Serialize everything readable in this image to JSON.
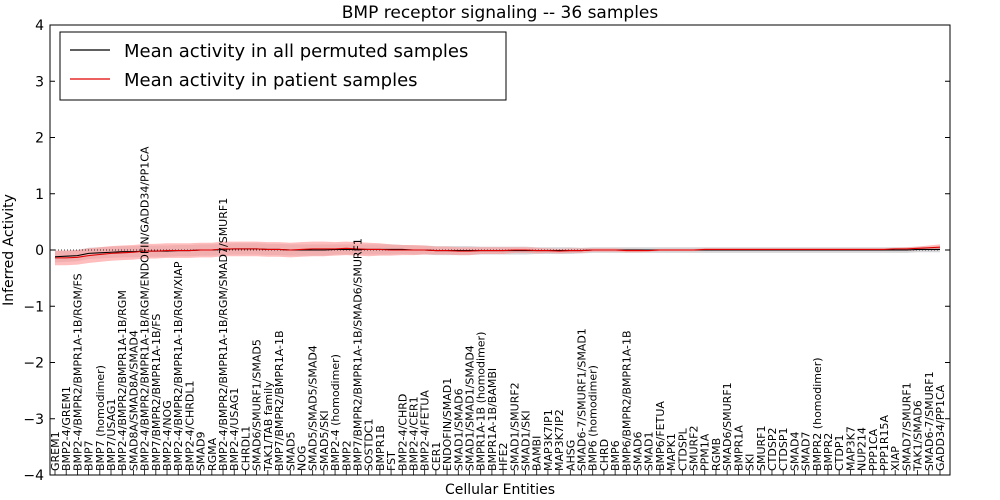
{
  "chart_data": {
    "type": "line",
    "title": "BMP receptor signaling -- 36 samples",
    "xlabel": "Cellular Entities",
    "ylabel": "Inferred Activity",
    "ylim": [
      -4,
      4
    ],
    "yticks": [
      -4,
      -3,
      -2,
      -1,
      0,
      1,
      2,
      3,
      4
    ],
    "legend_position": "top-left",
    "categories": [
      "GREM1",
      "BMP2-4/GREM1",
      "BMP2-4/BMPR2/BMPR1A-1B/RGM/FS",
      "BMP7",
      "BMP7 (homodimer)",
      "BMP7/USAG1",
      "BMP2-4/BMPR2/BMPR1A-1B/RGM",
      "SMAD8A/SMAD8A/SMAD4",
      "BMP2-4/BMPR2/BMPR1A-1B/RGM/ENDOFIN/GADD34/PP1CA",
      "BMP7/BMPR2/BMPR1A-1B/FS",
      "BMP2-4/NOG",
      "BMP2-4/BMPR2/BMPR1A-1B/RGM/XIAP",
      "BMP2-4/CHRDL1",
      "SMAD9",
      "RGMA",
      "BMP2-4/BMPR2/BMPR1A-1B/RGM/SMAD7/SMURF1",
      "BMP2-4/USAG1",
      "CHRDL1",
      "SMAD6/SMURF1/SMAD5",
      "TAK1/TAB family",
      "BMP7/BMPR2/BMPR1A-1B",
      "SMAD5",
      "NOG",
      "SMAD5/SMAD5/SMAD4",
      "SMAD5/SKI",
      "BMP2-4 (homodimer)",
      "BMP2",
      "BMP7/BMPR2/BMPR1A-1B/SMAD6/SMURF1",
      "SOSTDC1",
      "BMPR1B",
      "FST",
      "BMP2-4/CHRD",
      "BMP2-4/CER1",
      "BMP2-4/FETUA",
      "CER1",
      "ENDOFIN/SMAD1",
      "SMAD1/SMAD6",
      "SMAD1/SMAD1/SMAD4",
      "BMPR1A-1B (homodimer)",
      "BMPR1A-1B/BAMBI",
      "HFE2",
      "SMAD1/SMURF2",
      "SMAD1/SKI",
      "BAMBI",
      "MAP3K7IP1",
      "MAP3K7IP2",
      "AHSG",
      "SMAD6-7/SMURF1/SMAD1",
      "BMP6 (homodimer)",
      "CHRD",
      "BMP6",
      "BMP6/BMPR2/BMPR1A-1B",
      "SMAD6",
      "SMAD1",
      "BMP6/FETUA",
      "MAPK1",
      "CTDSPL",
      "SMURF2",
      "PPM1A",
      "RGMB",
      "SMAD6/SMURF1",
      "BMPR1A",
      "SKI",
      "SMURF1",
      "CTDSP2",
      "CTDSP1",
      "SMAD4",
      "SMAD7",
      "BMPR2 (homodimer)",
      "BMPR2",
      "CTDP1",
      "MAP3K7",
      "NUP214",
      "PPP1CA",
      "PPP1R15A",
      "XIAP",
      "SMAD7/SMURF1",
      "TAK1/SMAD6",
      "SMAD6-7/SMURF1",
      "GADD34/PP1CA"
    ],
    "series": [
      {
        "name": "Mean activity in all permuted samples",
        "color": "#000000",
        "band_color": "#c8c8cc",
        "values": [
          -0.12,
          -0.11,
          -0.1,
          -0.06,
          -0.05,
          -0.04,
          -0.03,
          -0.03,
          -0.02,
          -0.02,
          -0.02,
          -0.01,
          -0.01,
          0.0,
          0.0,
          0.01,
          0.02,
          0.02,
          0.02,
          0.01,
          0.01,
          0.0,
          0.0,
          0.0,
          0.0,
          0.01,
          0.01,
          0.01,
          0.01,
          0.01,
          0.01,
          0.01,
          0.0,
          0.0,
          -0.01,
          -0.01,
          -0.01,
          -0.01,
          -0.01,
          -0.01,
          -0.01,
          -0.01,
          -0.01,
          -0.01,
          -0.01,
          -0.01,
          -0.01,
          -0.01,
          0.0,
          0.0,
          0.0,
          0.0,
          0.0,
          0.0,
          0.0,
          0.0,
          0.0,
          0.0,
          0.0,
          0.0,
          0.0,
          0.0,
          0.0,
          0.0,
          0.0,
          0.0,
          0.0,
          0.0,
          0.0,
          0.0,
          0.0,
          0.0,
          0.0,
          0.0,
          0.0,
          0.0,
          0.0,
          0.01,
          0.01,
          0.01
        ],
        "band": [
          0.1,
          0.1,
          0.1,
          0.1,
          0.1,
          0.1,
          0.1,
          0.1,
          0.1,
          0.1,
          0.1,
          0.1,
          0.1,
          0.1,
          0.1,
          0.1,
          0.1,
          0.1,
          0.1,
          0.1,
          0.1,
          0.1,
          0.1,
          0.1,
          0.1,
          0.09,
          0.09,
          0.09,
          0.09,
          0.09,
          0.09,
          0.08,
          0.08,
          0.08,
          0.08,
          0.08,
          0.08,
          0.08,
          0.07,
          0.07,
          0.07,
          0.07,
          0.07,
          0.06,
          0.06,
          0.06,
          0.06,
          0.05,
          0.05,
          0.05,
          0.05,
          0.05,
          0.05,
          0.05,
          0.05,
          0.05,
          0.05,
          0.05,
          0.05,
          0.05,
          0.05,
          0.05,
          0.05,
          0.05,
          0.05,
          0.05,
          0.05,
          0.05,
          0.05,
          0.05,
          0.05,
          0.05,
          0.05,
          0.05,
          0.05,
          0.05,
          0.05,
          0.05,
          0.05,
          0.05
        ]
      },
      {
        "name": "Mean activity in patient samples",
        "color": "#e00000",
        "band_color": "#ff9999",
        "values": [
          -0.14,
          -0.14,
          -0.13,
          -0.1,
          -0.08,
          -0.06,
          -0.05,
          -0.04,
          -0.02,
          -0.02,
          -0.01,
          -0.01,
          -0.01,
          0.0,
          0.0,
          0.02,
          0.02,
          0.02,
          0.02,
          0.01,
          0.01,
          0.0,
          0.01,
          0.02,
          0.02,
          0.02,
          0.03,
          0.02,
          0.01,
          0.01,
          0.0,
          0.0,
          0.0,
          0.0,
          -0.01,
          -0.01,
          -0.02,
          -0.02,
          -0.01,
          -0.01,
          -0.01,
          0.0,
          0.0,
          -0.01,
          -0.01,
          -0.02,
          -0.01,
          -0.01,
          0.0,
          0.0,
          0.0,
          -0.01,
          -0.01,
          -0.01,
          0.0,
          0.0,
          0.0,
          0.0,
          0.01,
          0.01,
          0.01,
          0.01,
          0.01,
          0.01,
          0.01,
          0.01,
          0.01,
          0.01,
          0.01,
          0.01,
          0.01,
          0.01,
          0.01,
          0.01,
          0.01,
          0.02,
          0.02,
          0.03,
          0.04,
          0.05
        ],
        "band": [
          0.13,
          0.13,
          0.13,
          0.13,
          0.13,
          0.13,
          0.13,
          0.13,
          0.13,
          0.13,
          0.13,
          0.13,
          0.13,
          0.13,
          0.13,
          0.13,
          0.13,
          0.13,
          0.13,
          0.13,
          0.13,
          0.13,
          0.13,
          0.13,
          0.13,
          0.12,
          0.12,
          0.12,
          0.12,
          0.11,
          0.1,
          0.09,
          0.09,
          0.08,
          0.07,
          0.07,
          0.07,
          0.07,
          0.06,
          0.06,
          0.06,
          0.05,
          0.05,
          0.05,
          0.04,
          0.04,
          0.04,
          0.04,
          0.03,
          0.03,
          0.03,
          0.03,
          0.03,
          0.02,
          0.02,
          0.02,
          0.02,
          0.02,
          0.02,
          0.02,
          0.02,
          0.02,
          0.02,
          0.02,
          0.02,
          0.02,
          0.02,
          0.02,
          0.02,
          0.02,
          0.02,
          0.02,
          0.02,
          0.02,
          0.02,
          0.02,
          0.03,
          0.03,
          0.04,
          0.05
        ]
      }
    ]
  }
}
